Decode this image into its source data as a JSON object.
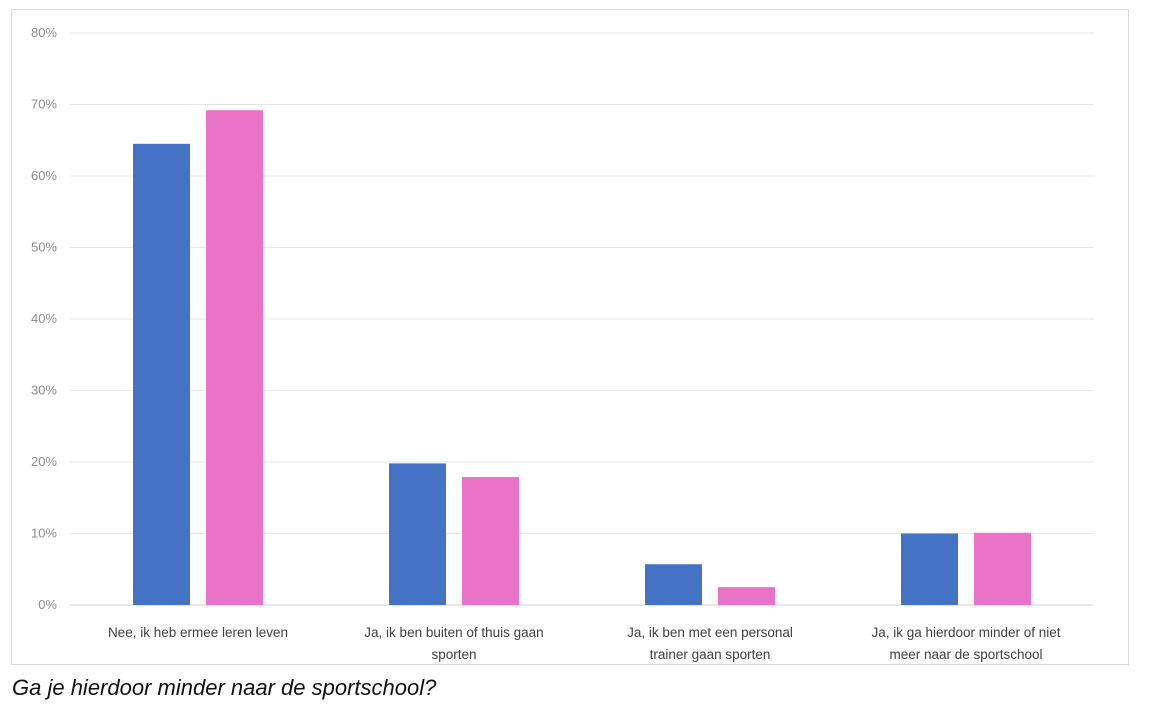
{
  "caption": "Ga je hierdoor minder naar de sportschool?",
  "chart_data": {
    "type": "bar",
    "categories": [
      [
        "Nee, ik heb ermee leren leven"
      ],
      [
        "Ja, ik ben buiten of thuis gaan",
        "sporten"
      ],
      [
        "Ja, ik ben met een personal",
        "trainer gaan sporten"
      ],
      [
        "Ja, ik ga hierdoor minder of niet",
        "meer naar de sportschool"
      ]
    ],
    "series": [
      {
        "color": "#4472C4",
        "values": [
          64.5,
          19.8,
          5.7,
          10.0
        ]
      },
      {
        "color": "#EA73C8",
        "values": [
          69.2,
          17.9,
          2.5,
          10.1
        ]
      }
    ],
    "ylim": [
      0,
      80
    ],
    "yticks": [
      0,
      10,
      20,
      30,
      40,
      50,
      60,
      70,
      80
    ],
    "ytick_labels": [
      "0%",
      "10%",
      "20%",
      "30%",
      "40%",
      "50%",
      "60%",
      "70%",
      "80%"
    ],
    "title": "",
    "xlabel": "",
    "ylabel": "",
    "grid": true,
    "legend": "none"
  }
}
